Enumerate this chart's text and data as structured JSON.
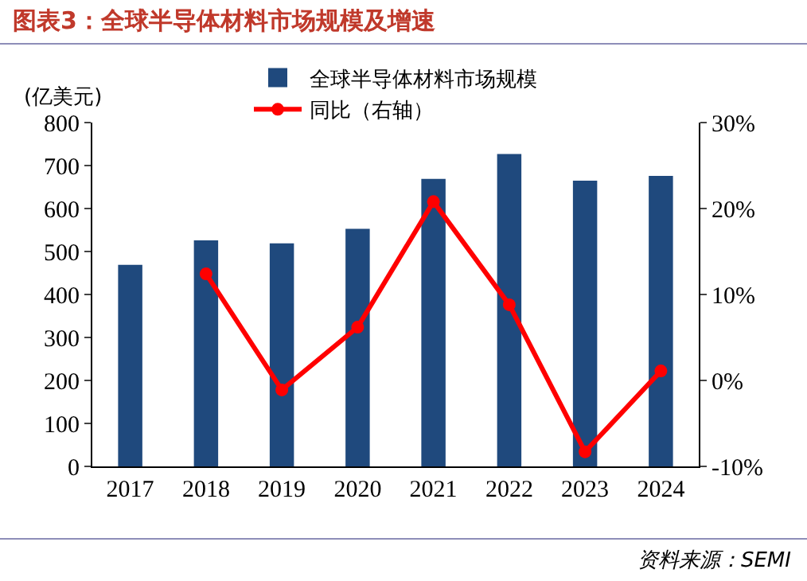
{
  "chart_data": {
    "type": "bar",
    "title": "图表3：全球半导体材料市场规模及增速",
    "ylabel": "(亿美元)",
    "categories": [
      "2017",
      "2018",
      "2019",
      "2020",
      "2021",
      "2022",
      "2023",
      "2024"
    ],
    "series": [
      {
        "name": "全球半导体材料市场规模",
        "color": "#1f497d",
        "values": [
          469,
          526,
          519,
          553,
          669,
          727,
          665,
          676
        ]
      },
      {
        "name": "同比（右轴）",
        "type": "line",
        "axis": "y2",
        "color": "#ff0000",
        "values": [
          null,
          12.4,
          -1.1,
          6.2,
          20.8,
          8.8,
          -8.3,
          1.1
        ]
      }
    ],
    "ylim": [
      0,
      800
    ],
    "yticks": [
      0,
      100,
      200,
      300,
      400,
      500,
      600,
      700,
      800
    ],
    "y2lim": [
      -10,
      30
    ],
    "y2ticks": [
      {
        "value": -10,
        "label": "-10%"
      },
      {
        "value": 0,
        "label": "0%"
      },
      {
        "value": 10,
        "label": "10%"
      },
      {
        "value": 20,
        "label": "20%"
      },
      {
        "value": 30,
        "label": "30%"
      }
    ],
    "grid": false,
    "legend": "top",
    "marker": "circle",
    "line_style": "solid",
    "annotations": [
      "资料来源：SEMI"
    ]
  }
}
